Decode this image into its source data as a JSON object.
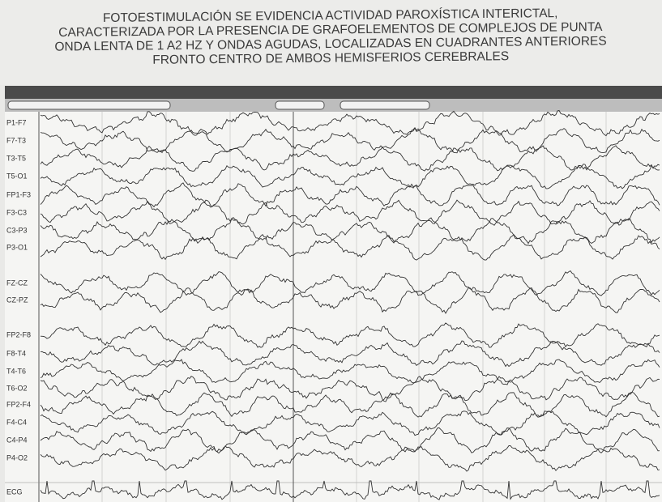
{
  "header": {
    "title_lines": [
      "FOTOESTIMULACIÓN SE EVIDENCIA ACTIVIDAD PAROXÍSTICA INTERICTAL,",
      "CARACTERIZADA POR LA PRESENCIA DE GRAFOELEMENTOS DE COMPLEJOS DE PUNTA",
      "ONDA LENTA DE 1 A2 HZ Y ONDAS AGUDAS, LOCALIZADAS EN CUADRANTES ANTERIORES",
      "FRONTO CENTRO DE AMBOS HEMISFERIOS CEREBRALES"
    ]
  },
  "eeg": {
    "channels": [
      "P1-F7",
      "F7-T3",
      "T3-T5",
      "T5-O1",
      "FP1-F3",
      "F3-C3",
      "C3-P3",
      "P3-O1",
      "FZ-CZ",
      "CZ-PZ",
      "FP2-F8",
      "F8-T4",
      "T4-T6",
      "T6-O2",
      "FP2-F4",
      "F4-C4",
      "C4-P4",
      "P4-O2",
      "ECG"
    ]
  }
}
